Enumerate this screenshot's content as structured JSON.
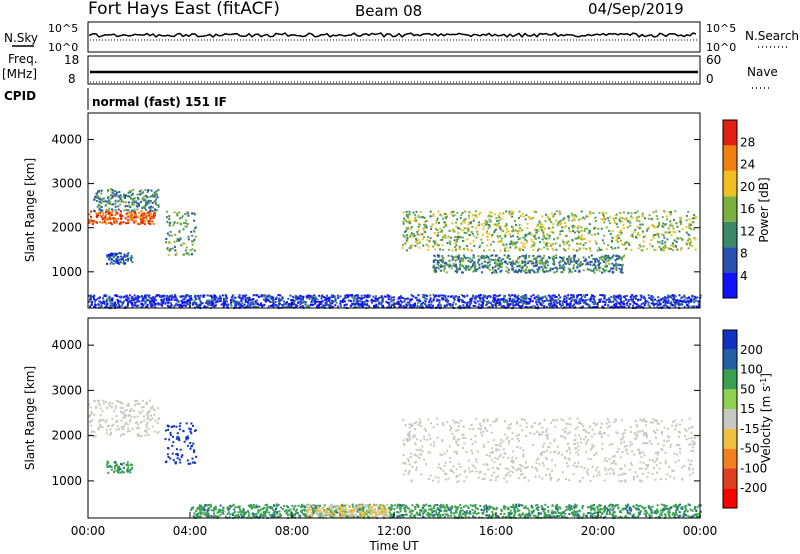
{
  "header": {
    "station": "Fort Hays East (fitACF)",
    "beam": "Beam 08",
    "date": "04/Sep/2019"
  },
  "top_panels": {
    "nsky_label": "N.Sky",
    "nsky_ticks": [
      "10^5",
      "10^0"
    ],
    "nsearch_label": "N.Search",
    "nsearch_ticks": [
      "10^5",
      "10^0"
    ],
    "freq_label": "Freq.",
    "freq_unit": "[MHz]",
    "freq_ticks": [
      "18",
      "8"
    ],
    "nave_label": "Nave",
    "nave_ticks": [
      "60",
      "0"
    ],
    "cpid_label": "CPID",
    "cpid_value": "normal (fast) 151 IF"
  },
  "colors": {
    "power_scale": [
      "#1010ff",
      "#2850b0",
      "#3a8a6a",
      "#7ab040",
      "#f0c020",
      "#f08010",
      "#e02010"
    ],
    "velocity_scale": [
      "#1030c0",
      "#2060a0",
      "#3aa050",
      "#90d050",
      "#c8c8c0",
      "#f0c040",
      "#f08020",
      "#e04020",
      "#ff0000"
    ],
    "ground_scatter": "#c8c8c0"
  },
  "chart_data": [
    {
      "type": "heatmap",
      "title": "Power",
      "ylabel": "Slant Range [km]",
      "xlabel": "Time UT",
      "ylim": [
        180,
        4600
      ],
      "xlim": [
        0,
        24
      ],
      "x_ticks": [
        "00:00",
        "04:00",
        "08:00",
        "12:00",
        "16:00",
        "20:00",
        "00:00"
      ],
      "y_ticks": [
        "1000",
        "2000",
        "3000",
        "4000"
      ],
      "colorbar_label": "Power [dB]",
      "colorbar_ticks": [
        "4",
        "8",
        "12",
        "16",
        "20",
        "24",
        "28"
      ],
      "regions": [
        {
          "desc": "strong echo band",
          "x_range": [
            0.0,
            2.6
          ],
          "y_range": [
            2100,
            2400
          ],
          "value_db": 26
        },
        {
          "desc": "upper band",
          "x_range": [
            0.2,
            2.8
          ],
          "y_range": [
            2400,
            2900
          ],
          "value_db": 12
        },
        {
          "desc": "lower band",
          "x_range": [
            0.7,
            1.7
          ],
          "y_range": [
            1200,
            1450
          ],
          "value_db": 8
        },
        {
          "desc": "descending echo",
          "x_range": [
            3.0,
            4.2
          ],
          "y_range": [
            1400,
            2400
          ],
          "value_db": 14
        },
        {
          "desc": "ground band",
          "x_range": [
            0.0,
            24.0
          ],
          "y_range": [
            200,
            500
          ],
          "value_db": 6
        },
        {
          "desc": "evening arc upper",
          "x_range": [
            12.3,
            23.8
          ],
          "y_range": [
            1500,
            2400
          ],
          "value_db": 16
        },
        {
          "desc": "evening arc lower",
          "x_range": [
            13.5,
            21.0
          ],
          "y_range": [
            1000,
            1400
          ],
          "value_db": 12
        }
      ]
    },
    {
      "type": "heatmap",
      "title": "Velocity",
      "ylabel": "Slant Range [km]",
      "xlabel": "Time UT",
      "ylim": [
        180,
        4600
      ],
      "xlim": [
        0,
        24
      ],
      "x_ticks": [
        "00:00",
        "04:00",
        "08:00",
        "12:00",
        "16:00",
        "20:00",
        "00:00"
      ],
      "y_ticks": [
        "1000",
        "2000",
        "3000",
        "4000"
      ],
      "colorbar_label": "Velocity [m s^-1]",
      "colorbar_ticks": [
        "200",
        "100",
        "50",
        "15",
        "-15",
        "-50",
        "-100",
        "-200"
      ],
      "regions": [
        {
          "desc": "ground scatter band",
          "x_range": [
            0.0,
            2.8
          ],
          "y_range": [
            2000,
            2800
          ],
          "value_ms": 0
        },
        {
          "desc": "descending echo",
          "x_range": [
            3.0,
            4.2
          ],
          "y_range": [
            1400,
            2300
          ],
          "value_ms": 150
        },
        {
          "desc": "lower band",
          "x_range": [
            0.7,
            1.7
          ],
          "y_range": [
            1200,
            1450
          ],
          "value_ms": 40
        },
        {
          "desc": "near range",
          "x_range": [
            4.0,
            24.0
          ],
          "y_range": [
            200,
            500
          ],
          "value_ms": 40
        },
        {
          "desc": "near range orange",
          "x_range": [
            8.5,
            11.8
          ],
          "y_range": [
            200,
            500
          ],
          "value_ms": -50
        },
        {
          "desc": "evening arc",
          "x_range": [
            12.3,
            23.8
          ],
          "y_range": [
            1000,
            2400
          ],
          "value_ms": 0
        }
      ]
    }
  ]
}
